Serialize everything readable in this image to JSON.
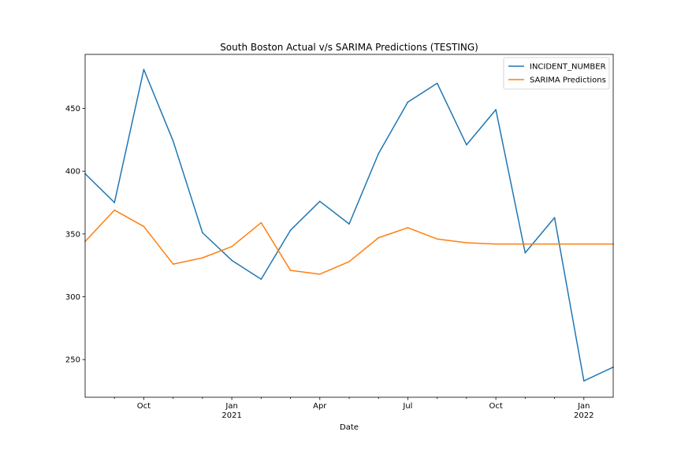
{
  "chart_data": {
    "type": "line",
    "title": "South Boston Actual v/s SARIMA Predictions (TESTING)",
    "xlabel": "Date",
    "ylabel": "",
    "x": [
      "2020-08",
      "2020-09",
      "2020-10",
      "2020-11",
      "2020-12",
      "2021-01",
      "2021-02",
      "2021-03",
      "2021-04",
      "2021-05",
      "2021-06",
      "2021-07",
      "2021-08",
      "2021-09",
      "2021-10",
      "2021-11",
      "2021-12",
      "2022-01",
      "2022-02"
    ],
    "series": [
      {
        "name": "INCIDENT_NUMBER",
        "color": "#1f77b4",
        "values": [
          398,
          375,
          481,
          424,
          351,
          329,
          314,
          353,
          376,
          358,
          414,
          455,
          470,
          421,
          449,
          335,
          363,
          233,
          244
        ]
      },
      {
        "name": "SARIMA Predictions",
        "color": "#ff7f0e",
        "values": [
          344,
          369,
          356,
          326,
          331,
          340,
          359,
          321,
          318,
          328,
          347,
          355,
          346,
          343,
          342,
          342,
          342,
          342,
          342
        ]
      }
    ],
    "xlim": [
      "2020-08",
      "2022-02"
    ],
    "ylim": [
      220,
      493
    ],
    "yticks": [
      250,
      300,
      350,
      400,
      450
    ],
    "xticks": [
      {
        "x": "2020-09",
        "label": "",
        "minor": true
      },
      {
        "x": "2020-10",
        "label": "Oct",
        "minor": false
      },
      {
        "x": "2020-11",
        "label": "",
        "minor": true
      },
      {
        "x": "2020-12",
        "label": "",
        "minor": true
      },
      {
        "x": "2021-01",
        "label": "Jan",
        "sublabel": "2021",
        "minor": false
      },
      {
        "x": "2021-02",
        "label": "",
        "minor": true
      },
      {
        "x": "2021-03",
        "label": "",
        "minor": true
      },
      {
        "x": "2021-04",
        "label": "Apr",
        "minor": false
      },
      {
        "x": "2021-05",
        "label": "",
        "minor": true
      },
      {
        "x": "2021-06",
        "label": "",
        "minor": true
      },
      {
        "x": "2021-07",
        "label": "Jul",
        "minor": false
      },
      {
        "x": "2021-08",
        "label": "",
        "minor": true
      },
      {
        "x": "2021-09",
        "label": "",
        "minor": true
      },
      {
        "x": "2021-10",
        "label": "Oct",
        "minor": false
      },
      {
        "x": "2021-11",
        "label": "",
        "minor": true
      },
      {
        "x": "2021-12",
        "label": "",
        "minor": true
      },
      {
        "x": "2022-01",
        "label": "Jan",
        "sublabel": "2022",
        "minor": false
      }
    ],
    "grid": false,
    "legend_position": "top-right"
  }
}
